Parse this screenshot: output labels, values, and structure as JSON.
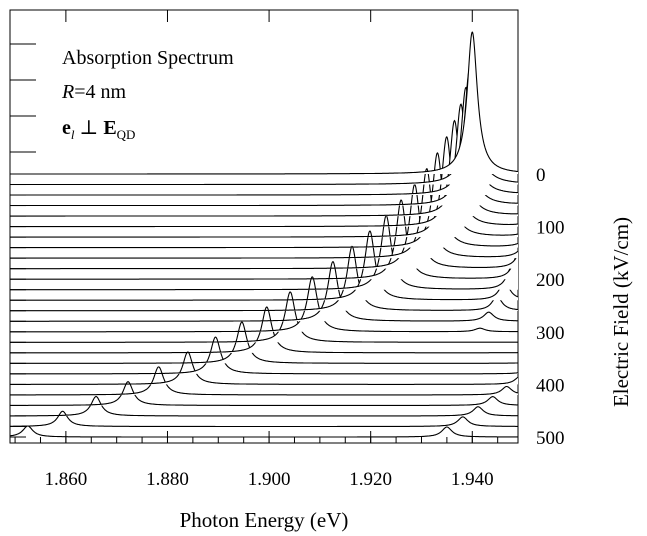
{
  "chart_data": {
    "type": "line",
    "subtype": "waterfall",
    "annotation": {
      "line1": "Absorption Spectrum",
      "line2_italic": "R",
      "line2_rest": "=4 nm",
      "line3_e": "e",
      "line3_sub_l": "l",
      "line3_perp": " ⊥ ",
      "line3_E": "E",
      "line3_sub_qd": "QD"
    },
    "xlabel": "Photon Energy (eV)",
    "ylabel_right": "Electric Field (kV/cm)",
    "x_ticks": [
      1.86,
      1.88,
      1.9,
      1.92,
      1.94
    ],
    "x_tick_labels": [
      "1.860",
      "1.880",
      "1.900",
      "1.920",
      "1.940"
    ],
    "xlim": [
      1.849,
      1.949
    ],
    "field_ticks": [
      0,
      100,
      200,
      300,
      400,
      500
    ],
    "field_tick_labels": [
      "0",
      "100",
      "200",
      "300",
      "400",
      "500"
    ],
    "field_range": [
      0,
      500
    ],
    "field_step": 20,
    "peaks": {
      "ground_state_energy_at_zero_field_eV": 1.94,
      "ground_state_height_at_zero_field": 142,
      "ground_state_height_at_max_field": 11,
      "linewidth_eV": 0.0012,
      "quadratic_stark_shift_eV_per_kVcm2": 3.5e-07
    },
    "grid": false,
    "legend": "none"
  }
}
